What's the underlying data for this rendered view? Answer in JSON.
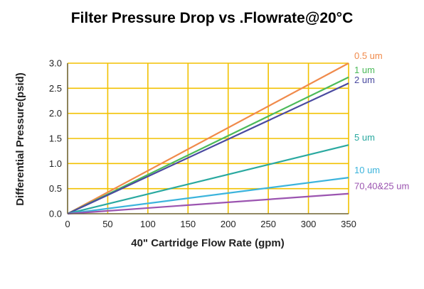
{
  "chart_data": {
    "type": "line",
    "title": "Filter Pressure Drop vs .Flowrate@20°C",
    "xlabel": "40\" Cartridge Flow Rate (gpm)",
    "ylabel": "Differential Pressure(psid)",
    "xlim": [
      0,
      350
    ],
    "ylim": [
      0,
      3.0
    ],
    "x_ticks": [
      "0",
      "50",
      "100",
      "150",
      "200",
      "250",
      "300",
      "350"
    ],
    "y_ticks": [
      "0.0",
      "0.5",
      "1.0",
      "1.5",
      "2.0",
      "2.5",
      "3.0"
    ],
    "grid": true,
    "grid_color": "#f2c100",
    "series": [
      {
        "name": "0.5 um",
        "color": "#f08a4b",
        "x": [
          0,
          350
        ],
        "y": [
          0,
          3.0
        ]
      },
      {
        "name": "1 um",
        "color": "#4cba5a",
        "x": [
          0,
          350
        ],
        "y": [
          0,
          2.72
        ]
      },
      {
        "name": "2 um",
        "color": "#4a4aa0",
        "x": [
          0,
          350
        ],
        "y": [
          0,
          2.6
        ]
      },
      {
        "name": "5 um",
        "color": "#2aa9a0",
        "x": [
          0,
          350
        ],
        "y": [
          0,
          1.37
        ]
      },
      {
        "name": "10 um",
        "color": "#3cb4dc",
        "x": [
          0,
          350
        ],
        "y": [
          0,
          0.72
        ]
      },
      {
        "name": "70,40&25 um",
        "color": "#9b54b0",
        "x": [
          0,
          350
        ],
        "y": [
          0,
          0.4
        ]
      }
    ]
  }
}
